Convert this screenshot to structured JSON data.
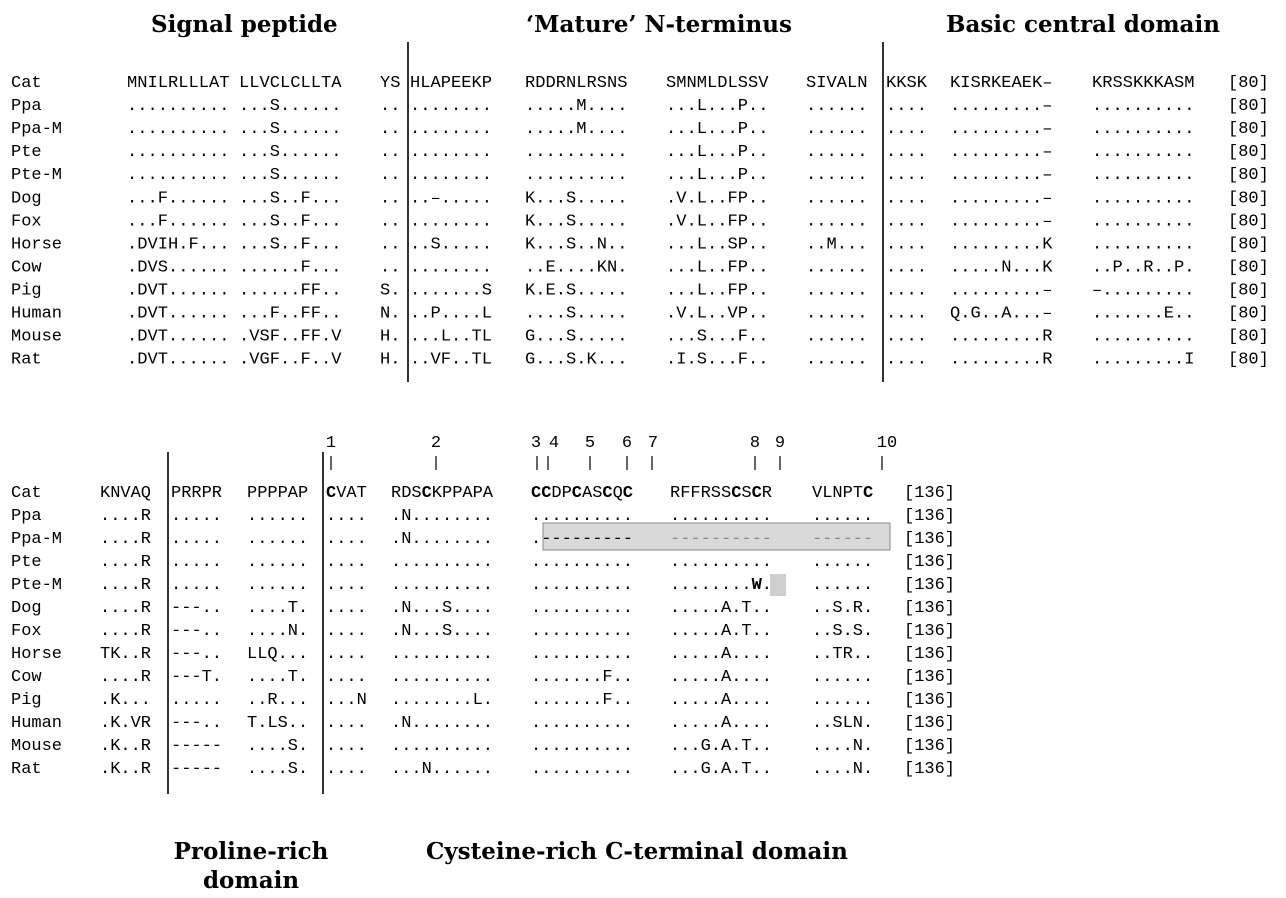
{
  "headers": {
    "signal_peptide": "Signal peptide",
    "mature_n_terminus": "‘Mature’ N-terminus",
    "basic_central_domain": "Basic central domain",
    "proline_rich_line1": "Proline-rich",
    "proline_rich_line2": "domain",
    "cysteine_rich": "Cysteine-rich C-terminal domain"
  },
  "block1": {
    "end_label": "[80]",
    "rows": [
      {
        "species": "Cat",
        "segments": [
          "MNILRLLLAT",
          "LLVCLCLLTA",
          "YS",
          "HLAPEEKP",
          "RDDRNLRSNS",
          "SMNMLDLSSV",
          "SIVALN",
          "KKSK",
          "KISRKEAEK–",
          "KRSSKKKASM"
        ]
      },
      {
        "species": "Ppa",
        "segments": [
          "..........",
          "...S......",
          "..",
          "........",
          ".....M....",
          "...L...P..",
          "......",
          "....",
          ".........–",
          ".........."
        ]
      },
      {
        "species": "Ppa-M",
        "segments": [
          "..........",
          "...S......",
          "..",
          "........",
          ".....M....",
          "...L...P..",
          "......",
          "....",
          ".........–",
          ".........."
        ]
      },
      {
        "species": "Pte",
        "segments": [
          "..........",
          "...S......",
          "..",
          "........",
          "..........",
          "...L...P..",
          "......",
          "....",
          ".........–",
          ".........."
        ]
      },
      {
        "species": "Pte-M",
        "segments": [
          "..........",
          "...S......",
          "..",
          "........",
          "..........",
          "...L...P..",
          "......",
          "....",
          ".........–",
          ".........."
        ]
      },
      {
        "species": "Dog",
        "segments": [
          "...F......",
          "...S..F...",
          "..",
          "..–.....",
          "K...S.....",
          ".V.L..FP..",
          "......",
          "....",
          ".........–",
          ".........."
        ]
      },
      {
        "species": "Fox",
        "segments": [
          "...F......",
          "...S..F...",
          "..",
          "........",
          "K...S.....",
          ".V.L..FP..",
          "......",
          "....",
          ".........–",
          ".........."
        ]
      },
      {
        "species": "Horse",
        "segments": [
          ".DVIH.F...",
          "...S..F...",
          "..",
          "..S.....",
          "K...S..N..",
          "...L..SP..",
          "..M...",
          "....",
          ".........K",
          ".........."
        ]
      },
      {
        "species": "Cow",
        "segments": [
          ".DVS......",
          "......F...",
          "..",
          "........",
          "..E....KN.",
          "...L..FP..",
          "......",
          "....",
          ".....N...K",
          "..P..R..P."
        ]
      },
      {
        "species": "Pig",
        "segments": [
          ".DVT......",
          "......FF..",
          "S.",
          ".......S",
          "K.E.S.....",
          "...L..FP..",
          "......",
          "....",
          ".........–",
          "–........."
        ]
      },
      {
        "species": "Human",
        "segments": [
          ".DVT......",
          "...F..FF..",
          "N.",
          "..P....L",
          "....S.....",
          ".V.L..VP..",
          "......",
          "....",
          "Q.G..A...–",
          ".......E.."
        ]
      },
      {
        "species": "Mouse",
        "segments": [
          ".DVT......",
          ".VSF..FF.V",
          "H.",
          "...L..TL",
          "G...S.....",
          "...S...F..",
          "......",
          "....",
          ".........R",
          ".........."
        ]
      },
      {
        "species": "Rat",
        "segments": [
          ".DVT......",
          ".VGF..F..V",
          "H.",
          "..VF..TL",
          "G...S.K...",
          ".I.S...F..",
          "......",
          "....",
          ".........R",
          ".........I"
        ]
      }
    ]
  },
  "block2": {
    "end_label": "[136]",
    "cys_labels": [
      "1",
      "2",
      "3",
      "4",
      "5",
      "6",
      "7",
      "8",
      "9",
      "10"
    ],
    "rows": [
      {
        "species": "Cat",
        "segments": [
          "KNVAQ",
          "PRRPR",
          "PPPPAP",
          "CVAT",
          "RDSCKPPAPA",
          "CCDPCASCQC",
          "RFFRSSCSCR",
          "VLNPTC"
        ]
      },
      {
        "species": "Ppa",
        "segments": [
          "....R",
          ".....",
          "......",
          "....",
          ".N........",
          "..........",
          "..........",
          "......"
        ]
      },
      {
        "species": "Ppa-M",
        "segments": [
          "....R",
          ".....",
          "......",
          "....",
          ".N........",
          ".---------",
          "----------",
          "------"
        ]
      },
      {
        "species": "Pte",
        "segments": [
          "....R",
          ".....",
          "......",
          "....",
          "..........",
          "..........",
          "..........",
          "......"
        ]
      },
      {
        "species": "Pte-M",
        "segments": [
          "....R",
          ".....",
          "......",
          "....",
          "..........",
          "..........",
          "........W.",
          "......"
        ]
      },
      {
        "species": "Dog",
        "segments": [
          "....R",
          "---..",
          "....T.",
          "....",
          ".N...S....",
          "..........",
          ".....A.T..",
          "..S.R."
        ]
      },
      {
        "species": "Fox",
        "segments": [
          "....R",
          "---..",
          "....N.",
          "....",
          ".N...S....",
          "..........",
          ".....A.T..",
          "..S.S."
        ]
      },
      {
        "species": "Horse",
        "segments": [
          "TK..R",
          "---..",
          "LLQ...",
          "....",
          "..........",
          "..........",
          ".....A....",
          "..TR.."
        ]
      },
      {
        "species": "Cow",
        "segments": [
          "....R",
          "---T.",
          "....T.",
          "....",
          "..........",
          ".......F..",
          ".....A....",
          "......"
        ]
      },
      {
        "species": "Pig",
        "segments": [
          ".K...",
          ".....",
          "..R...",
          "...N",
          "........L.",
          ".......F..",
          ".....A....",
          "......"
        ]
      },
      {
        "species": "Human",
        "segments": [
          ".K.VR",
          "---..",
          "T.LS..",
          "....",
          ".N........",
          "..........",
          ".....A....",
          "..SLN."
        ]
      },
      {
        "species": "Mouse",
        "segments": [
          ".K..R",
          "-----",
          "....S.",
          "....",
          "..........",
          "..........",
          "...G.A.T..",
          "....N."
        ]
      },
      {
        "species": "Rat",
        "segments": [
          ".K..R",
          "-----",
          "....S.",
          "....",
          "...N......",
          "..........",
          "...G.A.T..",
          "....N."
        ]
      }
    ]
  }
}
